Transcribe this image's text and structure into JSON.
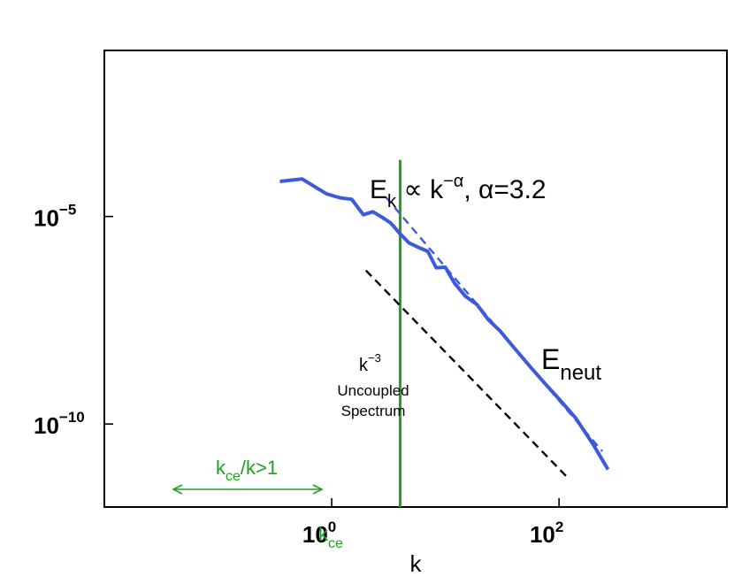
{
  "chart_data": {
    "type": "line",
    "scale": {
      "x": "log",
      "y": "log"
    },
    "xlim": [
      0.01,
      3000
    ],
    "ylim": [
      1e-12,
      0.1
    ],
    "xlabel": "k",
    "ylabel": "",
    "grid": false,
    "x_ticks": [
      {
        "value": 1,
        "base": "10",
        "exp": "0"
      },
      {
        "value": 100,
        "base": "10",
        "exp": "2"
      }
    ],
    "y_ticks": [
      {
        "value": 1e-05,
        "base": "10",
        "exp": "−5"
      },
      {
        "value": 1e-10,
        "base": "10",
        "exp": "−10"
      }
    ],
    "series": [
      {
        "name": "E_neut",
        "color": "#3b5bdb",
        "style": "solid",
        "x": [
          0.35,
          0.55,
          0.9,
          1.2,
          1.5,
          1.9,
          2.3,
          2.7,
          3.3,
          4.0,
          4.8,
          5.8,
          7.0,
          8.3,
          10,
          12,
          15,
          19,
          24,
          30,
          40,
          55,
          75,
          100,
          140,
          200,
          270
        ],
        "y": [
          7e-05,
          8e-05,
          3.5e-05,
          2.8e-05,
          2.6e-05,
          1.1e-05,
          1.3e-05,
          1e-05,
          7e-06,
          3.8e-06,
          2.3e-06,
          1.8e-06,
          1.45e-06,
          5.8e-07,
          6e-07,
          2.5e-07,
          1.2e-07,
          7.5e-08,
          3.2e-08,
          1.8e-08,
          7e-09,
          2.5e-09,
          9.5e-10,
          4e-10,
          1.4e-10,
          3.2e-11,
          8e-12
        ]
      },
      {
        "name": "",
        "color": "#3b5bdb",
        "style": "dashed",
        "x": [
          3.0,
          240
        ],
        "y": [
          2.9e-05,
          2.2e-11
        ]
      },
      {
        "name": "",
        "color": "#000000",
        "style": "dashed",
        "x": [
          2.0,
          120
        ],
        "y": [
          5e-07,
          5e-12
        ]
      }
    ],
    "vertical_lines": [
      {
        "x": 4.0,
        "y_top": 0.00023,
        "color": "#22a022",
        "label": "k",
        "label_sub": "ce"
      }
    ],
    "annotations": {
      "formula": {
        "E": "E",
        "E_sub": "k",
        "prop": " ∝ k",
        "exp": "−α",
        "tail": ", α=3.2"
      },
      "eneut": {
        "main": "E",
        "sub": "neut"
      },
      "k3": {
        "main": "k",
        "sup": "−3"
      },
      "uncoupled_1": "Uncoupled",
      "uncoupled_2": "Spectrum",
      "ratio": {
        "k": "k",
        "sub": "ce",
        "rest": "/k>1"
      }
    },
    "colors": {
      "spectrum": "#3b5bdb",
      "kce": "#22a022",
      "reference": "#000000"
    }
  }
}
